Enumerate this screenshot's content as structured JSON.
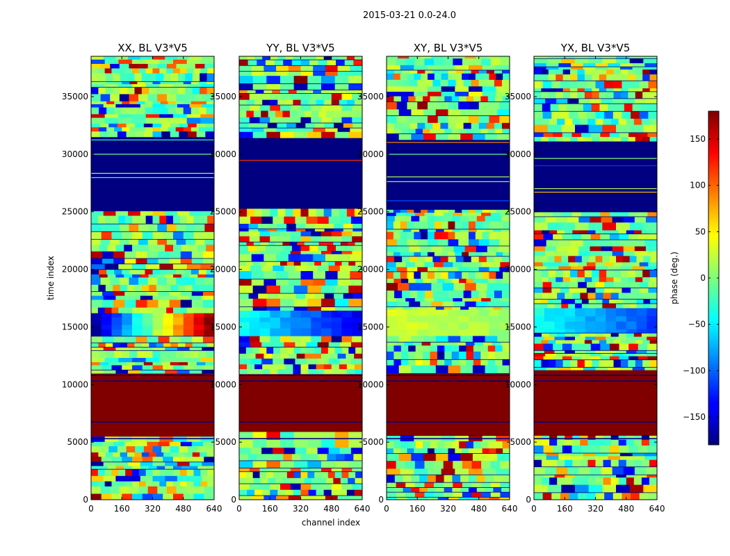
{
  "figure": {
    "suptitle": "2015-03-21 0.0-24.0"
  },
  "chart_data": {
    "type": "heatmap",
    "xlabel": "channel index",
    "ylabel": "time index",
    "xlim": [
      0,
      640
    ],
    "ylim": [
      0,
      38500
    ],
    "x_ticks": [
      0,
      160,
      320,
      480,
      640
    ],
    "x_tick_labels": [
      "0",
      "160",
      "320",
      "480",
      "640"
    ],
    "y_ticks": [
      0,
      5000,
      10000,
      15000,
      20000,
      25000,
      30000,
      35000
    ],
    "y_tick_labels": [
      "0",
      "5000",
      "10000",
      "15000",
      "20000",
      "25000",
      "30000",
      "35000"
    ],
    "colormap": "jet",
    "colorbar": {
      "label": "phase (deg.)",
      "range": [
        -180,
        180
      ],
      "ticks": [
        150,
        100,
        50,
        0,
        -50,
        -100,
        -150
      ],
      "tick_labels": [
        "150",
        "100",
        "50",
        "0",
        "−50",
        "−100",
        "−150"
      ]
    },
    "panels": [
      {
        "title": "XX, BL V3*V5",
        "polarization": "XX",
        "mid_band_value": -170,
        "mid_band_end_value": 170
      },
      {
        "title": "YY, BL V3*V5",
        "polarization": "YY",
        "mid_band_value": -40,
        "mid_band_end_value": -140
      },
      {
        "title": "XY, BL V3*V5",
        "polarization": "XY",
        "mid_band_value": 30,
        "mid_band_end_value": 10
      },
      {
        "title": "YX, BL V3*V5",
        "polarization": "YX",
        "mid_band_value": -40,
        "mid_band_end_value": -110
      }
    ],
    "constant_regions": [
      {
        "t_start": 5300,
        "t_end": 10800,
        "phase": 180,
        "note": "saturated block"
      },
      {
        "t_start": 25000,
        "t_end": 31000,
        "phase": -180,
        "note": "dark block"
      }
    ]
  }
}
